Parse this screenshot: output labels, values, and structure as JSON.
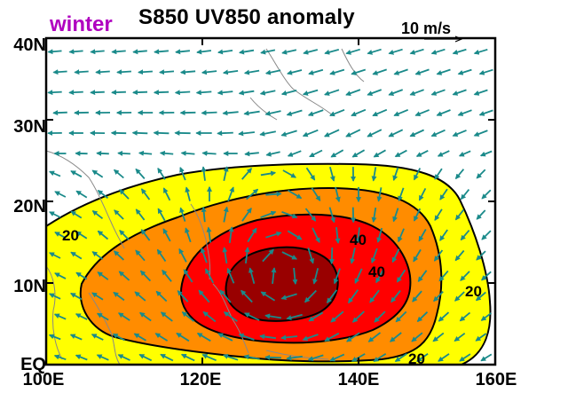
{
  "figure": {
    "season": "winter",
    "title": "S850 UV850 anomaly",
    "reference_vector": {
      "label": "10 m/s",
      "magnitude": 10
    },
    "lat_ticks": [
      "40N",
      "30N",
      "20N",
      "10N",
      "EQ"
    ],
    "lon_ticks": [
      "100E",
      "120E",
      "140E",
      "160E"
    ],
    "domain": {
      "lon": [
        100,
        160
      ],
      "lat": [
        0,
        40
      ]
    },
    "contour_levels": [
      20,
      40
    ],
    "contour_labels": [
      "20",
      "40",
      "40",
      "20",
      "20"
    ],
    "colors": {
      "level_1": "#ffff00",
      "level_2": "#ff8c00",
      "level_3": "#ff0000",
      "level_4": "#990000",
      "vectors": "#1a8a8a",
      "coastline": "#888888"
    }
  }
}
